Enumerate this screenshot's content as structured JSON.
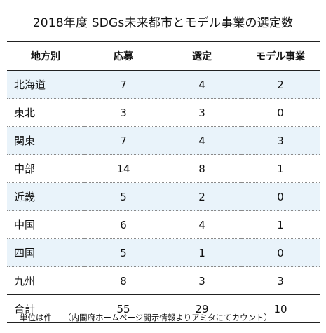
{
  "title": "2018年度 SDGs未来都市とモデル事業の選定数",
  "table": {
    "headers": [
      "地方別",
      "応募",
      "選定",
      "モデル事業"
    ],
    "rows": [
      {
        "region": "北海道",
        "applied": "7",
        "selected": "4",
        "model": "2",
        "shaded": true
      },
      {
        "region": "東北",
        "applied": "3",
        "selected": "3",
        "model": "0",
        "shaded": false
      },
      {
        "region": "関東",
        "applied": "7",
        "selected": "4",
        "model": "3",
        "shaded": true
      },
      {
        "region": "中部",
        "applied": "14",
        "selected": "8",
        "model": "1",
        "shaded": false
      },
      {
        "region": "近畿",
        "applied": "5",
        "selected": "2",
        "model": "0",
        "shaded": true
      },
      {
        "region": "中国",
        "applied": "6",
        "selected": "4",
        "model": "1",
        "shaded": false
      },
      {
        "region": "四国",
        "applied": "5",
        "selected": "1",
        "model": "0",
        "shaded": true
      },
      {
        "region": "九州",
        "applied": "8",
        "selected": "3",
        "model": "3",
        "shaded": false
      }
    ],
    "total": {
      "region": "合計",
      "applied": "55",
      "selected": "29",
      "model": "10"
    },
    "shade_color": "#e9f3fa"
  },
  "footnote": {
    "unit": "単位は件",
    "source": "（内閣府ホームページ開示情報よりアミタにてカウント）"
  }
}
